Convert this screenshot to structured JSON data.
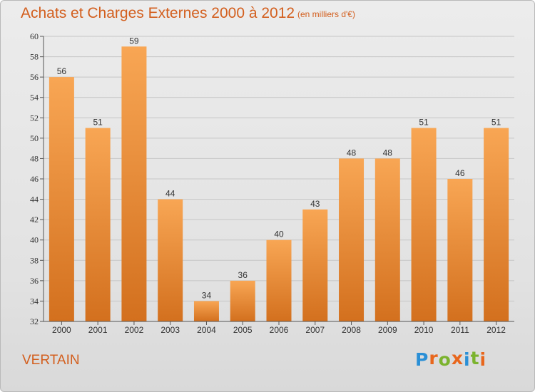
{
  "chart_data": {
    "type": "bar",
    "title": "Achats et Charges Externes 2000 à 2012",
    "subtitle": "(en milliers d'€)",
    "categories": [
      "2000",
      "2001",
      "2002",
      "2003",
      "2004",
      "2005",
      "2006",
      "2007",
      "2008",
      "2009",
      "2010",
      "2011",
      "2012"
    ],
    "values": [
      56,
      51,
      59,
      44,
      34,
      36,
      40,
      43,
      48,
      48,
      51,
      46,
      51
    ],
    "ylim": [
      32,
      60
    ],
    "yticks": [
      32,
      34,
      36,
      38,
      40,
      42,
      44,
      46,
      48,
      50,
      52,
      54,
      56,
      58,
      60
    ],
    "xlabel": "",
    "ylabel": "",
    "grid": true,
    "bar_color_top": "#f8a654",
    "bar_color_bottom": "#d3701e"
  },
  "location": "VERTAIN",
  "brand": {
    "letters": [
      "P",
      "r",
      "o",
      "x",
      "i",
      "t",
      "i"
    ],
    "colors": [
      "#2a8fd6",
      "#e8661c",
      "#7bb32e",
      "#e8661c",
      "#2a8fd6",
      "#7bb32e",
      "#e8661c"
    ]
  }
}
